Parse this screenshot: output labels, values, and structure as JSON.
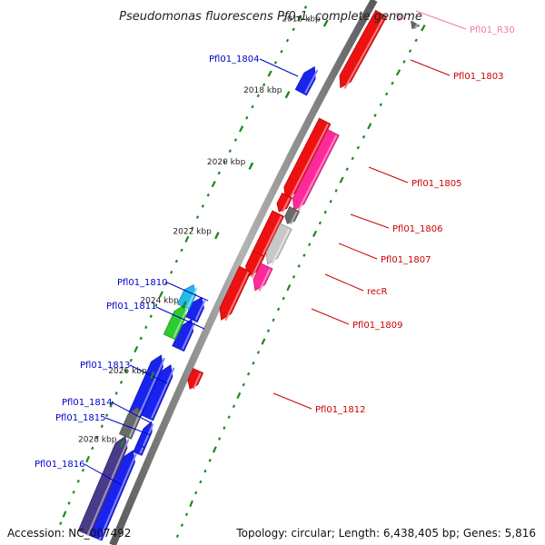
{
  "map": {
    "title": "Pseudomonas fluorescens Pf0-1, complete genome",
    "accession": "Accession: NC_007492",
    "topology": "Topology: circular; Length: 6,438,405 bp; Genes: 5,816"
  },
  "colors": {
    "backbone": "#8a8a8a",
    "tick": "#1a8a1a",
    "forward_label": "#0000cc",
    "reverse_label": "#cc0000",
    "rna_label": "#f080a0"
  },
  "kbp_ticks": [
    "2016 kbp",
    "2018 kbp",
    "2020 kbp",
    "2022 kbp",
    "2024 kbp",
    "2026 kbp",
    "2028 kbp"
  ],
  "genes": [
    {
      "name": "Pfl01_R30",
      "strand": "reverse",
      "color": "#f4b6cc",
      "label_color": "#f080a0"
    },
    {
      "name": "Pfl01_1803",
      "strand": "reverse",
      "color": "#ee1111",
      "label_color": "#cc0000"
    },
    {
      "name": "Pfl01_1804",
      "strand": "forward",
      "color": "#1a22ee",
      "label_color": "#0000cc"
    },
    {
      "name": "Pfl01_1805",
      "strand": "reverse",
      "color": "#ff2a9a",
      "label_color": "#cc0000"
    },
    {
      "name": "Pfl01_1806",
      "strand": "reverse",
      "color": "#6a6a6a",
      "label_color": "#cc0000"
    },
    {
      "name": "Pfl01_1807",
      "strand": "reverse",
      "color": "#c8c8c8",
      "label_color": "#cc0000"
    },
    {
      "name": "recR",
      "strand": "reverse",
      "color": "#ff2a9a",
      "label_color": "#cc0000"
    },
    {
      "name": "Pfl01_1809",
      "strand": "reverse",
      "color": "#ee1111",
      "label_color": "#cc0000"
    },
    {
      "name": "Pfl01_1810",
      "strand": "forward",
      "color": "#22bbee",
      "label_color": "#0000cc"
    },
    {
      "name": "Pfl01_1811",
      "strand": "forward",
      "color": "#2ecc2e",
      "label_color": "#0000cc"
    },
    {
      "name": "Pfl01_1812",
      "strand": "reverse",
      "color": "#ee1111",
      "label_color": "#cc0000"
    },
    {
      "name": "Pfl01_1813",
      "strand": "forward",
      "color": "#1a22ee",
      "label_color": "#0000cc"
    },
    {
      "name": "Pfl01_1814",
      "strand": "forward",
      "color": "#6a6a6a",
      "label_color": "#0000cc"
    },
    {
      "name": "Pfl01_1815",
      "strand": "forward",
      "color": "#1a22ee",
      "label_color": "#0000cc"
    },
    {
      "name": "Pfl01_1816",
      "strand": "forward",
      "color": "#4a3a8a",
      "label_color": "#0000cc"
    }
  ]
}
